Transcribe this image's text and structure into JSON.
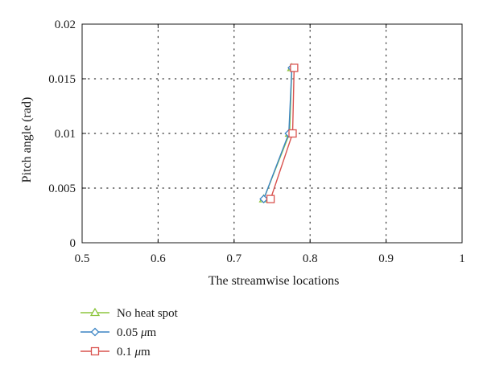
{
  "chart_data": {
    "type": "line",
    "title": "",
    "xlabel": "The streamwise locations",
    "ylabel": "Pitch angle (rad)",
    "xlim": [
      0.5,
      1
    ],
    "ylim": [
      0,
      0.02
    ],
    "xticks": [
      0.5,
      0.6,
      0.7,
      0.8,
      0.9,
      1
    ],
    "xtick_labels": [
      "0.5",
      "0.6",
      "0.7",
      "0.8",
      "0.9",
      "1"
    ],
    "yticks": [
      0,
      0.005,
      0.01,
      0.015,
      0.02
    ],
    "ytick_labels": [
      "0",
      "0.005",
      "0.01",
      "0.015",
      "0.02"
    ],
    "grid": true,
    "legend_position": "below-left",
    "series": [
      {
        "name": "No heat spot",
        "marker": "triangle",
        "color": "#8dc63f",
        "x": [
          0.776,
          0.773,
          0.739
        ],
        "y": [
          0.016,
          0.01,
          0.004
        ]
      },
      {
        "name": "0.05 μm",
        "name_parts": [
          "0.05 ",
          "μ",
          "m"
        ],
        "marker": "diamond",
        "color": "#3b84c4",
        "x": [
          0.776,
          0.772,
          0.739
        ],
        "y": [
          0.016,
          0.01,
          0.004
        ]
      },
      {
        "name": "0.1 μm",
        "name_parts": [
          "0.1 ",
          "μ",
          "m"
        ],
        "marker": "square",
        "color": "#d9534f",
        "x": [
          0.779,
          0.777,
          0.748
        ],
        "y": [
          0.016,
          0.01,
          0.004
        ]
      }
    ]
  }
}
